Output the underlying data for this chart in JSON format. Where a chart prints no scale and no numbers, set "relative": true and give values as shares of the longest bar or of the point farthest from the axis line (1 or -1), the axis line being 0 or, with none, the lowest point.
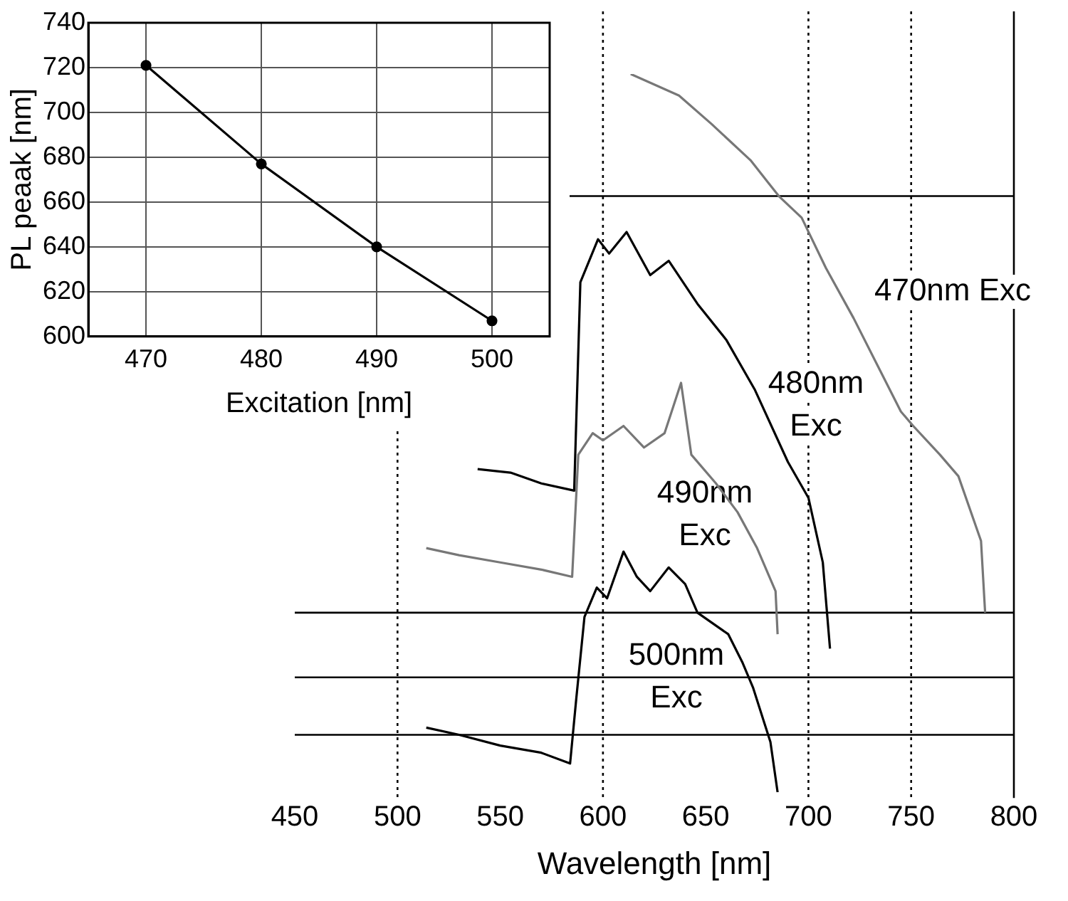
{
  "chart_data": [
    {
      "type": "line",
      "xlabel": "Excitation [nm]",
      "ylabel": "PL peaak [nm]",
      "x": [
        470,
        480,
        490,
        500
      ],
      "series": [
        {
          "color": "#000000",
          "values": [
            721,
            677,
            640,
            607
          ]
        }
      ],
      "xlim": [
        465,
        505
      ],
      "xticks": [
        470,
        480,
        490,
        500
      ],
      "ylim": [
        600,
        740
      ],
      "yticks": [
        600,
        620,
        640,
        660,
        680,
        700,
        720,
        740
      ],
      "grid": true,
      "marker": "circle",
      "line_style": "solid"
    },
    {
      "type": "line",
      "xlabel": "Wavelength [nm]",
      "relative": true,
      "marker": "none",
      "series": [
        {
          "color": "#777777",
          "x": [
            613.5,
            637,
            653,
            671.8,
            685.6,
            696.7,
            708.5,
            722,
            745,
            751,
            764,
            773,
            784,
            786
          ],
          "values": [
            1.0,
            0.97,
            0.93,
            0.88,
            0.83,
            0.8,
            0.73,
            0.66,
            0.53,
            0.51,
            0.47,
            0.44,
            0.35,
            0.25
          ]
        },
        {
          "color": "#000000",
          "x": [
            539,
            555,
            570,
            586,
            589,
            597.6,
            603,
            611.5,
            623,
            632,
            646,
            660,
            674,
            690,
            700,
            707,
            710.5
          ],
          "values": [
            0.45,
            0.445,
            0.43,
            0.42,
            0.71,
            0.77,
            0.75,
            0.78,
            0.72,
            0.74,
            0.68,
            0.63,
            0.56,
            0.46,
            0.41,
            0.32,
            0.2
          ]
        },
        {
          "color": "#777777",
          "x": [
            514,
            530,
            550,
            570,
            585,
            588,
            595,
            600,
            610,
            620,
            630,
            638,
            643,
            655,
            665.5,
            675,
            684,
            685
          ],
          "values": [
            0.34,
            0.33,
            0.32,
            0.31,
            0.3,
            0.47,
            0.5,
            0.49,
            0.51,
            0.48,
            0.5,
            0.57,
            0.47,
            0.43,
            0.39,
            0.34,
            0.28,
            0.22
          ]
        },
        {
          "color": "#000000",
          "x": [
            514,
            530,
            550,
            570,
            584,
            587,
            591,
            597,
            602,
            610,
            616.5,
            623,
            632,
            640,
            646,
            661,
            668,
            673,
            681.5,
            685
          ],
          "values": [
            0.09,
            0.08,
            0.065,
            0.055,
            0.04,
            0.13,
            0.244,
            0.285,
            0.27,
            0.335,
            0.3,
            0.28,
            0.313,
            0.29,
            0.25,
            0.22,
            0.18,
            0.146,
            0.07,
            0
          ]
        }
      ],
      "xlim": [
        450,
        800
      ],
      "xticks": [
        450,
        500,
        550,
        600,
        650,
        700,
        750,
        800
      ],
      "ref_lines": [
        {
          "axis": "x",
          "value": 500,
          "line_style": "dotted"
        },
        {
          "axis": "x",
          "value": 600,
          "line_style": "dotted"
        },
        {
          "axis": "x",
          "value": 700,
          "line_style": "dotted"
        },
        {
          "axis": "x",
          "value": 750,
          "line_style": "dotted"
        },
        {
          "axis": "x",
          "value": 800,
          "line_style": "solid"
        },
        {
          "axis": "y",
          "value": 0.83,
          "line_style": "solid"
        },
        {
          "axis": "y",
          "value": 0.25,
          "line_style": "solid"
        },
        {
          "axis": "y",
          "value": 0.16,
          "line_style": "solid"
        },
        {
          "axis": "y",
          "value": 0.08,
          "line_style": "solid"
        }
      ],
      "annotations": [
        "470nm Exc",
        "480nm\nExc",
        "490nm\nExc",
        "500nm\nExc"
      ]
    }
  ]
}
